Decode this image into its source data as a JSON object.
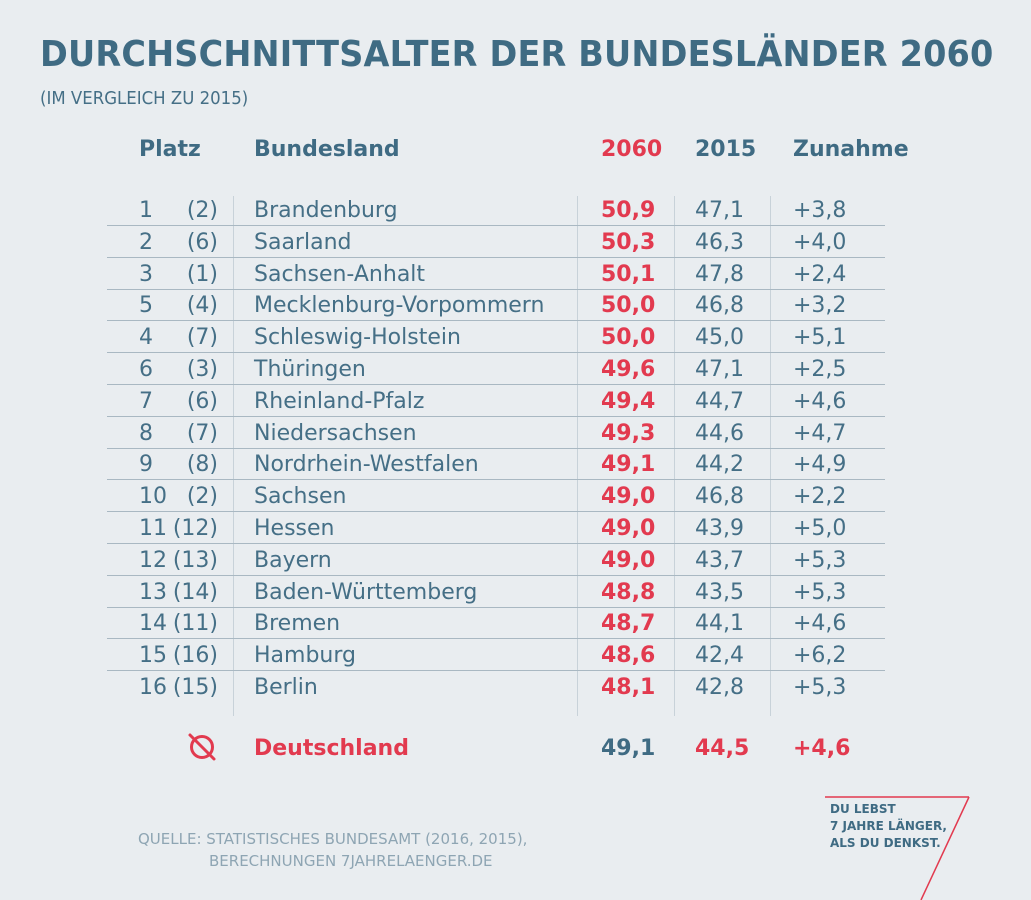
{
  "title": "DURCHSCHNITTSALTER DER BUNDESLÄNDER 2060",
  "subtitle": "(IM VERGLEICH ZU 2015)",
  "headers": {
    "platz": "Platz",
    "bundesland": "Bundesland",
    "y2060": "2060",
    "y2015": "2015",
    "zunahme": "Zunahme"
  },
  "chart_data": {
    "type": "table",
    "columns": [
      "Platz",
      "Bundesland",
      "2060",
      "2015",
      "Zunahme"
    ],
    "rows": [
      {
        "rank": "1",
        "prev": "(2)",
        "name": "Brandenburg",
        "v2060": "50,9",
        "v2015": "47,1",
        "inc": "+3,8"
      },
      {
        "rank": "2",
        "prev": "(6)",
        "name": "Saarland",
        "v2060": "50,3",
        "v2015": "46,3",
        "inc": "+4,0"
      },
      {
        "rank": "3",
        "prev": "(1)",
        "name": "Sachsen-Anhalt",
        "v2060": "50,1",
        "v2015": "47,8",
        "inc": "+2,4"
      },
      {
        "rank": "5",
        "prev": "(4)",
        "name": "Mecklenburg-Vorpommern",
        "v2060": "50,0",
        "v2015": "46,8",
        "inc": "+3,2"
      },
      {
        "rank": "4",
        "prev": "(7)",
        "name": "Schleswig-Holstein",
        "v2060": "50,0",
        "v2015": "45,0",
        "inc": "+5,1"
      },
      {
        "rank": "6",
        "prev": "(3)",
        "name": "Thüringen",
        "v2060": "49,6",
        "v2015": "47,1",
        "inc": "+2,5"
      },
      {
        "rank": "7",
        "prev": "(6)",
        "name": "Rheinland-Pfalz",
        "v2060": "49,4",
        "v2015": "44,7",
        "inc": "+4,6"
      },
      {
        "rank": "8",
        "prev": "(7)",
        "name": "Niedersachsen",
        "v2060": "49,3",
        "v2015": "44,6",
        "inc": "+4,7"
      },
      {
        "rank": "9",
        "prev": "(8)",
        "name": "Nordrhein-Westfalen",
        "v2060": "49,1",
        "v2015": "44,2",
        "inc": "+4,9"
      },
      {
        "rank": "10",
        "prev": "(2)",
        "name": "Sachsen",
        "v2060": "49,0",
        "v2015": "46,8",
        "inc": "+2,2"
      },
      {
        "rank": "11",
        "prev": "(12)",
        "name": "Hessen",
        "v2060": "49,0",
        "v2015": "43,9",
        "inc": "+5,0"
      },
      {
        "rank": "12",
        "prev": "(13)",
        "name": "Bayern",
        "v2060": "49,0",
        "v2015": "43,7",
        "inc": "+5,3"
      },
      {
        "rank": "13",
        "prev": "(14)",
        "name": "Baden-Württemberg",
        "v2060": "48,8",
        "v2015": "43,5",
        "inc": "+5,3"
      },
      {
        "rank": "14",
        "prev": "(11)",
        "name": "Bremen",
        "v2060": "48,7",
        "v2015": "44,1",
        "inc": "+4,6"
      },
      {
        "rank": "15",
        "prev": "(16)",
        "name": "Hamburg",
        "v2060": "48,6",
        "v2015": "42,4",
        "inc": "+6,2"
      },
      {
        "rank": "16",
        "prev": "(15)",
        "name": "Berlin",
        "v2060": "48,1",
        "v2015": "42,8",
        "inc": "+5,3"
      }
    ],
    "average": {
      "icon": "average-icon",
      "name": "Deutschland",
      "v2060": "49,1",
      "v2015": "44,5",
      "inc": "+4,6"
    }
  },
  "source": {
    "line1": "QUELLE: STATISTISCHES BUNDESAMT (2016, 2015),",
    "line2": "BERECHNUNGEN 7JAHRELAENGER.DE"
  },
  "logo": {
    "line1": "DU LEBST",
    "line2": "7 JAHRE LÄNGER,",
    "line3": "ALS DU DENKST."
  },
  "colors": {
    "background": "#e9edf0",
    "primary": "#3f6b83",
    "accent": "#e23a4f",
    "muted": "#8ea5b3"
  }
}
